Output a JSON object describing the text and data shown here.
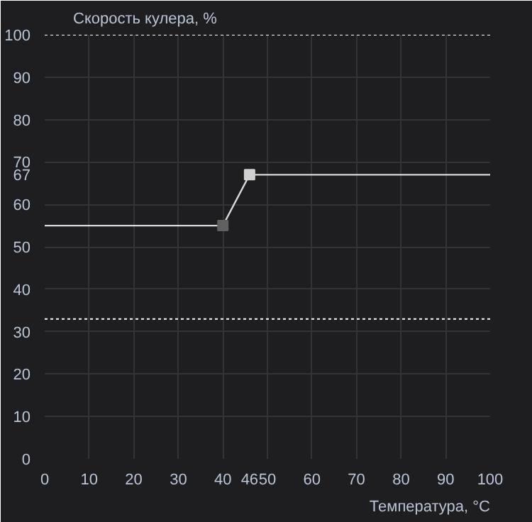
{
  "chart_data": {
    "type": "line",
    "xlabel": "Температура, °C",
    "ylabel": "Скорость кулера, %",
    "xlim": [
      0,
      100
    ],
    "ylim": [
      0,
      100
    ],
    "xticks": [
      0,
      10,
      20,
      30,
      40,
      {
        "value": 46,
        "label": "46"
      },
      50,
      60,
      70,
      80,
      90,
      100
    ],
    "yticks": [
      0,
      10,
      20,
      30,
      40,
      50,
      60,
      {
        "value": 67,
        "label": "67"
      },
      70,
      80,
      90,
      100
    ],
    "grid": true,
    "series": [
      {
        "color": "#d8d8d8",
        "x": [
          0,
          40,
          46,
          100
        ],
        "values": [
          55,
          55,
          67,
          67
        ],
        "marker": "none"
      },
      {
        "type": "scatter",
        "x": [
          40,
          46
        ],
        "values": [
          55,
          67
        ],
        "colors": [
          "#606060",
          "#d0d0d0"
        ],
        "marker": "square"
      }
    ],
    "ref_lines": [
      {
        "axis": "y",
        "value": 100,
        "color": "#ffffff",
        "line_style": "dotted"
      },
      {
        "axis": "y",
        "value": 33,
        "color": "#ffffff",
        "line_style": "dotted"
      }
    ]
  }
}
